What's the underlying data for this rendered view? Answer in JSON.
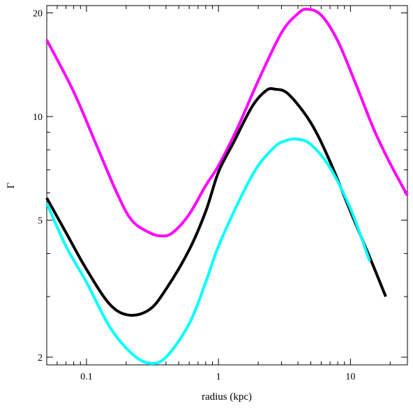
{
  "chart_data": {
    "type": "line",
    "title": "",
    "xlabel": "radius (kpc)",
    "ylabel": "Γ",
    "xscale": "log",
    "yscale": "log",
    "xlim": [
      0.05,
      27
    ],
    "ylim": [
      1.9,
      21
    ],
    "xticks": [
      0.1,
      1,
      10
    ],
    "xtick_labels": [
      "0.1",
      "1",
      "10"
    ],
    "yticks": [
      2,
      5,
      10,
      20
    ],
    "ytick_labels": [
      "2",
      "5",
      "10",
      "20"
    ],
    "grid": false,
    "legend": "none",
    "series": [
      {
        "color": "#ff00ff",
        "x": [
          0.05,
          0.08,
          0.12,
          0.17,
          0.22,
          0.3,
          0.37,
          0.45,
          0.6,
          0.8,
          1.0,
          1.4,
          2.0,
          3.0,
          4.0,
          4.7,
          6.0,
          8.0,
          11.0,
          15.0,
          20.0,
          27.0
        ],
        "y": [
          16.7,
          11.8,
          8.2,
          6.0,
          5.0,
          4.6,
          4.5,
          4.6,
          5.2,
          6.3,
          7.2,
          9.3,
          12.7,
          17.5,
          19.9,
          20.5,
          19.7,
          16.6,
          12.4,
          9.2,
          7.3,
          5.9
        ]
      },
      {
        "color": "#000000",
        "x": [
          0.05,
          0.07,
          0.1,
          0.15,
          0.21,
          0.3,
          0.4,
          0.6,
          0.8,
          1.0,
          1.3,
          1.8,
          2.3,
          2.7,
          3.4,
          5.0,
          7.0,
          10.0,
          14.0,
          18.5
        ],
        "y": [
          5.8,
          4.6,
          3.6,
          2.85,
          2.65,
          2.75,
          3.15,
          4.1,
          5.3,
          6.9,
          8.4,
          10.7,
          11.9,
          12.0,
          11.6,
          9.6,
          7.4,
          5.3,
          3.9,
          3.0
        ]
      },
      {
        "color": "#00ffff",
        "x": [
          0.05,
          0.07,
          0.1,
          0.15,
          0.22,
          0.3,
          0.4,
          0.6,
          0.8,
          1.0,
          1.5,
          2.0,
          2.7,
          3.2,
          3.9,
          5.0,
          7.0,
          10.0,
          14.0
        ],
        "y": [
          5.6,
          4.2,
          3.3,
          2.45,
          2.05,
          1.92,
          2.0,
          2.5,
          3.3,
          4.2,
          5.9,
          7.2,
          8.2,
          8.5,
          8.6,
          8.3,
          7.1,
          5.4,
          3.8
        ]
      }
    ]
  }
}
